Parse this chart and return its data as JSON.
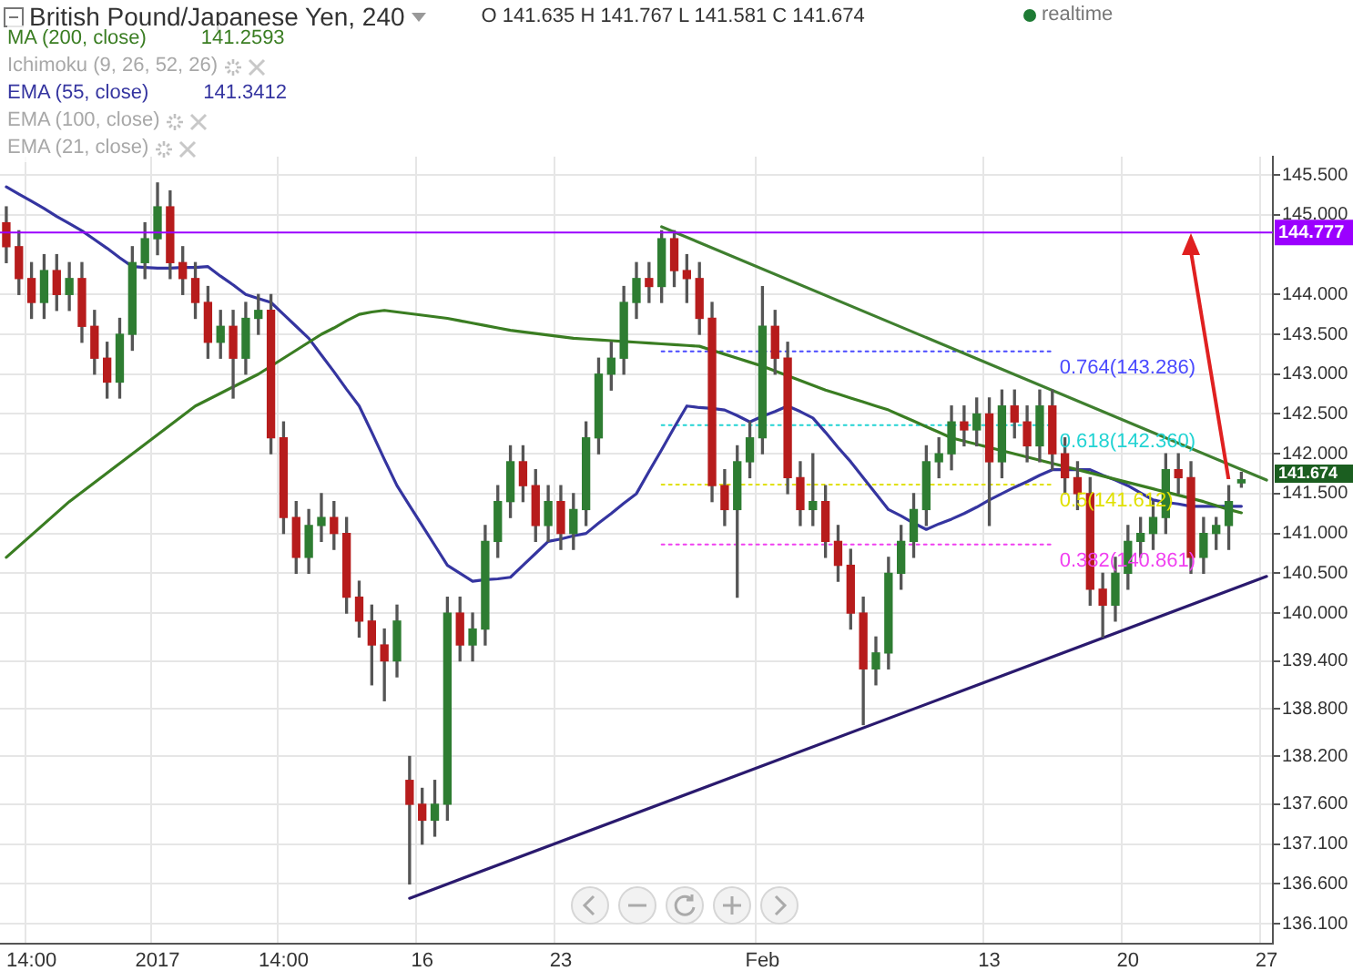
{
  "chart_data": {
    "type": "candlestick",
    "title": "British Pound/Japanese Yen, 240",
    "categories": [
      null,
      null,
      "14:00",
      null,
      null,
      null,
      null,
      null,
      null,
      null,
      null,
      null,
      "2017",
      null,
      null,
      null,
      null,
      null,
      null,
      null,
      null,
      null,
      "14:00",
      null,
      null,
      null,
      null,
      null,
      null,
      null,
      null,
      null,
      null,
      "16",
      null,
      null,
      null,
      null,
      null,
      null,
      null,
      null,
      null,
      null,
      "23",
      null,
      null,
      null,
      null,
      null,
      null,
      null,
      null,
      null,
      null,
      null,
      null,
      null,
      null,
      null,
      "Feb",
      null,
      null,
      null,
      null,
      null,
      null,
      null,
      null,
      null,
      null,
      null,
      null,
      null,
      null,
      null,
      null,
      null,
      "13",
      null,
      null,
      null,
      null,
      null,
      null,
      null,
      null,
      null,
      null,
      "20",
      null,
      null,
      null,
      null,
      null,
      null,
      null,
      null,
      null,
      null,
      "27"
    ],
    "ohlc": [
      [
        144.9,
        145.1,
        144.4,
        144.6
      ],
      [
        144.6,
        144.8,
        144.0,
        144.2
      ],
      [
        144.2,
        144.4,
        143.7,
        143.9
      ],
      [
        143.9,
        144.5,
        143.7,
        144.3
      ],
      [
        144.3,
        144.5,
        143.8,
        144.0
      ],
      [
        144.0,
        144.4,
        143.8,
        144.2
      ],
      [
        144.2,
        144.4,
        143.4,
        143.6
      ],
      [
        143.6,
        143.8,
        143.0,
        143.2
      ],
      [
        143.2,
        143.4,
        142.7,
        142.9
      ],
      [
        142.9,
        143.7,
        142.7,
        143.5
      ],
      [
        143.5,
        144.6,
        143.3,
        144.4
      ],
      [
        144.4,
        144.9,
        144.2,
        144.7
      ],
      [
        144.7,
        145.4,
        144.5,
        145.1
      ],
      [
        145.1,
        145.3,
        144.2,
        144.4
      ],
      [
        144.4,
        144.6,
        144.0,
        144.2
      ],
      [
        144.2,
        144.4,
        143.7,
        143.9
      ],
      [
        143.9,
        144.1,
        143.2,
        143.4
      ],
      [
        143.4,
        143.8,
        143.2,
        143.6
      ],
      [
        143.6,
        143.8,
        142.7,
        143.2
      ],
      [
        143.2,
        143.9,
        143.0,
        143.7
      ],
      [
        143.7,
        144.0,
        143.5,
        143.8
      ],
      [
        143.8,
        144.0,
        142.0,
        142.2
      ],
      [
        142.2,
        142.4,
        141.0,
        141.2
      ],
      [
        141.2,
        141.4,
        140.5,
        140.7
      ],
      [
        140.7,
        141.3,
        140.5,
        141.1
      ],
      [
        141.1,
        141.5,
        140.9,
        141.2
      ],
      [
        141.2,
        141.4,
        140.8,
        141.0
      ],
      [
        141.0,
        141.2,
        140.0,
        140.2
      ],
      [
        140.2,
        140.4,
        139.7,
        139.9
      ],
      [
        139.9,
        140.1,
        139.1,
        139.6
      ],
      [
        139.6,
        139.8,
        138.9,
        139.4
      ],
      [
        139.4,
        140.1,
        139.2,
        139.9
      ],
      [
        137.9,
        138.2,
        136.6,
        137.6
      ],
      [
        137.6,
        137.8,
        137.1,
        137.4
      ],
      [
        137.4,
        137.9,
        137.2,
        137.6
      ],
      [
        137.6,
        140.2,
        137.4,
        140.0
      ],
      [
        140.0,
        140.2,
        139.4,
        139.6
      ],
      [
        139.6,
        140.0,
        139.4,
        139.8
      ],
      [
        139.8,
        141.1,
        139.6,
        140.9
      ],
      [
        140.9,
        141.6,
        140.7,
        141.4
      ],
      [
        141.4,
        142.1,
        141.2,
        141.9
      ],
      [
        141.9,
        142.1,
        141.4,
        141.6
      ],
      [
        141.6,
        141.8,
        140.9,
        141.1
      ],
      [
        141.1,
        141.6,
        140.9,
        141.4
      ],
      [
        141.4,
        141.6,
        140.8,
        141.0
      ],
      [
        141.0,
        141.5,
        140.8,
        141.3
      ],
      [
        141.3,
        142.4,
        141.1,
        142.2
      ],
      [
        142.2,
        143.2,
        142.0,
        143.0
      ],
      [
        143.0,
        143.4,
        142.8,
        143.2
      ],
      [
        143.2,
        144.1,
        143.0,
        143.9
      ],
      [
        143.9,
        144.4,
        143.7,
        144.2
      ],
      [
        144.2,
        144.4,
        143.9,
        144.1
      ],
      [
        144.1,
        144.8,
        143.9,
        144.7
      ],
      [
        144.7,
        144.8,
        144.1,
        144.3
      ],
      [
        144.3,
        144.5,
        143.9,
        144.2
      ],
      [
        144.2,
        144.4,
        143.5,
        143.7
      ],
      [
        143.7,
        143.9,
        141.4,
        141.6
      ],
      [
        141.6,
        141.8,
        141.1,
        141.3
      ],
      [
        141.3,
        142.1,
        140.2,
        141.9
      ],
      [
        141.9,
        142.4,
        141.7,
        142.2
      ],
      [
        142.2,
        144.1,
        142.0,
        143.6
      ],
      [
        143.6,
        143.8,
        143.0,
        143.2
      ],
      [
        143.2,
        143.4,
        141.5,
        141.7
      ],
      [
        141.7,
        141.9,
        141.1,
        141.3
      ],
      [
        141.3,
        142.0,
        141.1,
        141.4
      ],
      [
        141.4,
        141.6,
        140.7,
        140.9
      ],
      [
        140.9,
        141.1,
        140.4,
        140.6
      ],
      [
        140.6,
        140.8,
        139.8,
        140.0
      ],
      [
        140.0,
        140.2,
        138.6,
        139.3
      ],
      [
        139.3,
        139.7,
        139.1,
        139.5
      ],
      [
        139.5,
        140.7,
        139.3,
        140.5
      ],
      [
        140.5,
        141.1,
        140.3,
        140.9
      ],
      [
        140.9,
        141.5,
        140.7,
        141.3
      ],
      [
        141.3,
        142.1,
        141.1,
        141.9
      ],
      [
        141.9,
        142.2,
        141.7,
        142.0
      ],
      [
        142.0,
        142.6,
        141.8,
        142.4
      ],
      [
        142.4,
        142.6,
        142.1,
        142.3
      ],
      [
        142.3,
        142.7,
        142.1,
        142.5
      ],
      [
        142.5,
        142.7,
        141.1,
        141.9
      ],
      [
        141.9,
        142.8,
        141.7,
        142.6
      ],
      [
        142.6,
        142.8,
        142.2,
        142.4
      ],
      [
        142.4,
        142.6,
        141.9,
        142.1
      ],
      [
        142.1,
        142.8,
        141.9,
        142.6
      ],
      [
        142.6,
        142.8,
        141.8,
        142.0
      ],
      [
        142.0,
        142.2,
        141.5,
        141.7
      ],
      [
        141.7,
        141.9,
        141.3,
        141.5
      ],
      [
        141.5,
        141.7,
        140.1,
        140.3
      ],
      [
        140.3,
        140.5,
        139.7,
        140.1
      ],
      [
        140.1,
        140.7,
        139.9,
        140.5
      ],
      [
        140.5,
        141.1,
        140.3,
        140.9
      ],
      [
        140.9,
        141.2,
        140.7,
        141.0
      ],
      [
        141.0,
        141.4,
        140.8,
        141.2
      ],
      [
        141.2,
        142.0,
        141.0,
        141.8
      ],
      [
        141.8,
        142.0,
        141.5,
        141.7
      ],
      [
        141.7,
        141.9,
        140.5,
        140.7
      ],
      [
        140.7,
        141.2,
        140.5,
        141.0
      ],
      [
        141.0,
        141.2,
        140.8,
        141.1
      ],
      [
        141.1,
        141.6,
        140.8,
        141.4
      ],
      [
        141.635,
        141.767,
        141.581,
        141.674
      ],
      null,
      null
    ],
    "series": [
      {
        "type": "line",
        "name": "MA (200, close)",
        "color": "#3a7d22",
        "values": [
          140.7,
          140.84,
          140.98,
          141.12,
          141.26,
          141.4,
          141.52,
          141.64,
          141.76,
          141.88,
          142.0,
          142.12,
          142.24,
          142.36,
          142.48,
          142.6,
          142.68,
          142.76,
          142.84,
          142.92,
          143.0,
          143.1,
          143.2,
          143.3,
          143.4,
          143.5,
          143.58,
          143.67,
          143.75,
          143.78,
          143.8,
          143.78,
          143.76,
          143.74,
          143.72,
          143.7,
          143.67,
          143.64,
          143.61,
          143.58,
          143.55,
          143.53,
          143.51,
          143.49,
          143.47,
          143.45,
          143.44,
          143.43,
          143.42,
          143.41,
          143.4,
          143.39,
          143.38,
          143.37,
          143.36,
          143.35,
          143.3,
          143.25,
          143.2,
          143.15,
          143.1,
          143.04,
          142.98,
          142.92,
          142.86,
          142.8,
          142.75,
          142.7,
          142.65,
          142.6,
          142.55,
          142.48,
          142.41,
          142.34,
          142.27,
          142.2,
          142.16,
          142.12,
          142.08,
          142.04,
          142.0,
          141.96,
          141.92,
          141.88,
          141.84,
          141.8,
          141.76,
          141.72,
          141.68,
          141.64,
          141.6,
          141.56,
          141.52,
          141.48,
          141.44,
          141.4,
          141.35,
          141.3,
          141.2593,
          null,
          null
        ]
      },
      {
        "type": "line",
        "name": "EMA (55, close)",
        "color": "#3535a0",
        "values": [
          145.35,
          145.26,
          145.17,
          145.08,
          144.98,
          144.89,
          144.8,
          144.69,
          144.58,
          144.46,
          144.35,
          144.34,
          144.33,
          144.33,
          144.34,
          144.34,
          144.35,
          144.23,
          144.12,
          144.0,
          143.95,
          143.9,
          143.75,
          143.6,
          143.45,
          143.24,
          143.03,
          142.81,
          142.6,
          142.27,
          141.93,
          141.6,
          141.35,
          141.1,
          140.85,
          140.6,
          140.5,
          140.4,
          140.42,
          140.43,
          140.45,
          140.6,
          140.75,
          140.9,
          140.93,
          140.97,
          141.0,
          141.13,
          141.25,
          141.38,
          141.5,
          141.78,
          142.05,
          142.33,
          142.6,
          142.58,
          142.57,
          142.55,
          142.48,
          142.4,
          142.47,
          142.53,
          142.6,
          142.53,
          142.45,
          142.27,
          142.08,
          141.9,
          141.7,
          141.5,
          141.3,
          141.22,
          141.13,
          141.05,
          141.12,
          141.18,
          141.25,
          141.33,
          141.42,
          141.5,
          141.58,
          141.65,
          141.73,
          141.8,
          141.8,
          141.8,
          141.8,
          141.73,
          141.67,
          141.6,
          141.51,
          141.42,
          141.39,
          141.37,
          141.34,
          141.34,
          141.34,
          141.34,
          141.3412,
          null,
          null
        ]
      },
      {
        "type": "line",
        "color": "#3f7f2f",
        "values": [
          null,
          null,
          null,
          null,
          null,
          null,
          null,
          null,
          null,
          null,
          null,
          null,
          null,
          null,
          null,
          null,
          null,
          null,
          null,
          null,
          null,
          null,
          null,
          null,
          null,
          null,
          null,
          null,
          null,
          null,
          null,
          null,
          null,
          null,
          null,
          null,
          null,
          null,
          null,
          null,
          null,
          null,
          null,
          null,
          null,
          null,
          null,
          null,
          null,
          null,
          null,
          null,
          144.85,
          null,
          null,
          null,
          null,
          null,
          null,
          null,
          null,
          null,
          null,
          null,
          null,
          null,
          null,
          null,
          null,
          null,
          null,
          null,
          null,
          null,
          null,
          null,
          null,
          null,
          null,
          null,
          null,
          null,
          null,
          null,
          null,
          null,
          null,
          null,
          null,
          null,
          null,
          null,
          null,
          null,
          null,
          null,
          null,
          null,
          null,
          null,
          141.67
        ]
      },
      {
        "type": "line",
        "color": "#2a1a6e",
        "values": [
          null,
          null,
          null,
          null,
          null,
          null,
          null,
          null,
          null,
          null,
          null,
          null,
          null,
          null,
          null,
          null,
          null,
          null,
          null,
          null,
          null,
          null,
          null,
          null,
          null,
          null,
          null,
          null,
          null,
          null,
          null,
          null,
          136.42,
          null,
          null,
          null,
          null,
          null,
          null,
          null,
          null,
          null,
          null,
          null,
          null,
          null,
          null,
          null,
          null,
          null,
          null,
          null,
          null,
          null,
          null,
          null,
          null,
          null,
          null,
          null,
          null,
          null,
          null,
          null,
          null,
          null,
          null,
          null,
          null,
          null,
          null,
          null,
          null,
          null,
          null,
          null,
          null,
          null,
          null,
          null,
          null,
          null,
          null,
          null,
          null,
          null,
          null,
          null,
          null,
          null,
          null,
          null,
          null,
          null,
          null,
          null,
          null,
          null,
          null,
          null,
          140.46
        ]
      },
      {
        "type": "line",
        "color": "#4a4aff",
        "line_style": "dotted",
        "values": [
          null,
          null,
          null,
          null,
          null,
          null,
          null,
          null,
          null,
          null,
          null,
          null,
          null,
          null,
          null,
          null,
          null,
          null,
          null,
          null,
          null,
          null,
          null,
          null,
          null,
          null,
          null,
          null,
          null,
          null,
          null,
          null,
          null,
          null,
          null,
          null,
          null,
          null,
          null,
          null,
          null,
          null,
          null,
          null,
          null,
          null,
          null,
          null,
          null,
          null,
          null,
          null,
          143.286,
          null,
          null,
          null,
          null,
          null,
          null,
          null,
          null,
          null,
          null,
          null,
          null,
          null,
          null,
          null,
          null,
          null,
          null,
          null,
          null,
          null,
          null,
          null,
          null,
          null,
          null,
          null,
          null,
          null,
          null,
          143.286,
          null,
          null,
          null,
          null,
          null,
          null,
          null,
          null,
          null,
          null,
          null,
          null,
          null,
          null,
          null,
          null,
          null
        ]
      },
      {
        "type": "line",
        "color": "#22d3d3",
        "line_style": "dotted",
        "values": [
          null,
          null,
          null,
          null,
          null,
          null,
          null,
          null,
          null,
          null,
          null,
          null,
          null,
          null,
          null,
          null,
          null,
          null,
          null,
          null,
          null,
          null,
          null,
          null,
          null,
          null,
          null,
          null,
          null,
          null,
          null,
          null,
          null,
          null,
          null,
          null,
          null,
          null,
          null,
          null,
          null,
          null,
          null,
          null,
          null,
          null,
          null,
          null,
          null,
          null,
          null,
          null,
          142.36,
          null,
          null,
          null,
          null,
          null,
          null,
          null,
          null,
          null,
          null,
          null,
          null,
          null,
          null,
          null,
          null,
          null,
          null,
          null,
          null,
          null,
          null,
          null,
          null,
          null,
          null,
          null,
          null,
          null,
          null,
          142.36,
          null,
          null,
          null,
          null,
          null,
          null,
          null,
          null,
          null,
          null,
          null,
          null,
          null,
          null,
          null,
          null,
          null
        ]
      },
      {
        "type": "line",
        "color": "#e0e000",
        "line_style": "dotted",
        "values": [
          null,
          null,
          null,
          null,
          null,
          null,
          null,
          null,
          null,
          null,
          null,
          null,
          null,
          null,
          null,
          null,
          null,
          null,
          null,
          null,
          null,
          null,
          null,
          null,
          null,
          null,
          null,
          null,
          null,
          null,
          null,
          null,
          null,
          null,
          null,
          null,
          null,
          null,
          null,
          null,
          null,
          null,
          null,
          null,
          null,
          null,
          null,
          null,
          null,
          null,
          null,
          null,
          141.612,
          null,
          null,
          null,
          null,
          null,
          null,
          null,
          null,
          null,
          null,
          null,
          null,
          null,
          null,
          null,
          null,
          null,
          null,
          null,
          null,
          null,
          null,
          null,
          null,
          null,
          null,
          null,
          null,
          null,
          null,
          141.612,
          null,
          null,
          null,
          null,
          null,
          null,
          null,
          null,
          null,
          null,
          null,
          null,
          null,
          null,
          null,
          null,
          null
        ]
      },
      {
        "type": "line",
        "color": "#f040f0",
        "line_style": "dotted",
        "values": [
          null,
          null,
          null,
          null,
          null,
          null,
          null,
          null,
          null,
          null,
          null,
          null,
          null,
          null,
          null,
          null,
          null,
          null,
          null,
          null,
          null,
          null,
          null,
          null,
          null,
          null,
          null,
          null,
          null,
          null,
          null,
          null,
          null,
          null,
          null,
          null,
          null,
          null,
          null,
          null,
          null,
          null,
          null,
          null,
          null,
          null,
          null,
          null,
          null,
          null,
          null,
          null,
          140.861,
          null,
          null,
          null,
          null,
          null,
          null,
          null,
          null,
          null,
          null,
          null,
          null,
          null,
          null,
          null,
          null,
          null,
          null,
          null,
          null,
          null,
          null,
          null,
          null,
          null,
          null,
          null,
          null,
          null,
          null,
          140.861,
          null,
          null,
          null,
          null,
          null,
          null,
          null,
          null,
          null,
          null,
          null,
          null,
          null,
          null,
          null,
          null,
          null
        ]
      }
    ],
    "ylim": [
      135.85,
      145.73
    ],
    "yticks": [
      {
        "value": 136.1,
        "label": "136.100"
      },
      {
        "value": 136.6,
        "label": "136.600"
      },
      {
        "value": 137.1,
        "label": "137.100"
      },
      {
        "value": 137.6,
        "label": "137.600"
      },
      {
        "value": 138.2,
        "label": "138.200"
      },
      {
        "value": 138.8,
        "label": "138.800"
      },
      {
        "value": 139.4,
        "label": "139.400"
      },
      {
        "value": 140,
        "label": "140.000"
      },
      {
        "value": 140.5,
        "label": "140.500"
      },
      {
        "value": 141,
        "label": "141.000"
      },
      {
        "value": 141.5,
        "label": "141.500"
      },
      {
        "value": 142,
        "label": "142.000"
      },
      {
        "value": 142.5,
        "label": "142.500"
      },
      {
        "value": 143,
        "label": "143.000"
      },
      {
        "value": 143.5,
        "label": "143.500"
      },
      {
        "value": 144,
        "label": "144.000"
      },
      {
        "value": 145,
        "label": "145.000"
      },
      {
        "value": 145.5,
        "label": "145.500"
      }
    ],
    "grid": true,
    "legend": "top left",
    "ref_lines": [
      {
        "axis": "y",
        "value": 144.777,
        "label": "144.777",
        "color": "#9b00ff"
      }
    ],
    "annotations": [
      "O 141.635 H 141.767 L 141.581 C 141.674",
      "Ichimoku (9, 26, 52, 26)",
      "EMA (100, close)",
      "EMA (21, close)",
      "realtime",
      "141.674",
      "141.2593",
      "141.3412",
      "0.764(143.286)",
      "0.618(142.360)",
      "0.5(141.612)",
      "0.382(140.861)"
    ]
  }
}
